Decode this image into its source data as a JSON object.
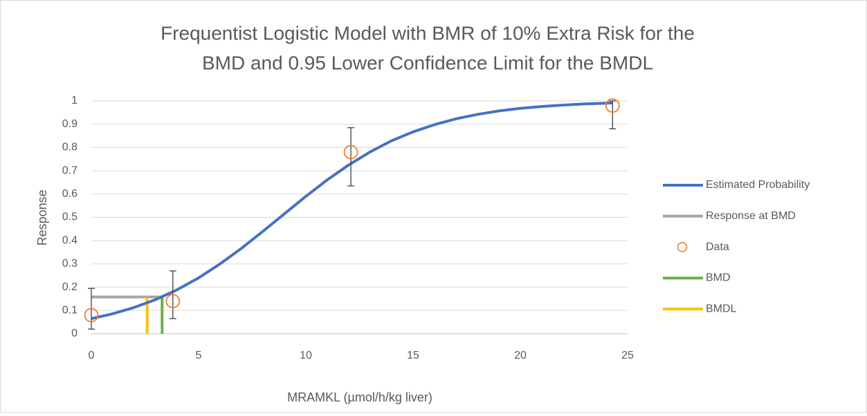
{
  "chart_data": {
    "type": "line",
    "title": [
      "Frequentist Logistic Model with BMR of 10% Extra Risk for the",
      "BMD and 0.95 Lower Confidence Limit for the BMDL"
    ],
    "x_label": "MRAMKL (µmol/h/kg liver)",
    "y_label": "Response",
    "xlim": [
      0,
      25
    ],
    "xticks": [
      0,
      5,
      10,
      15,
      20,
      25
    ],
    "ylim": [
      0,
      1
    ],
    "yticks": [
      0,
      0.1,
      0.2,
      0.3,
      0.4,
      0.5,
      0.6,
      0.7,
      0.8,
      0.9,
      1
    ],
    "grid": true,
    "legend": "right",
    "series": [
      {
        "name": "Estimated Probability",
        "color": "#4472c4",
        "style": "line",
        "x": [
          0,
          1,
          2,
          3,
          4,
          5,
          6,
          7,
          8,
          9,
          10,
          11,
          12,
          13,
          14,
          15,
          16,
          17,
          18,
          19,
          20,
          21,
          22,
          23,
          24,
          24.3
        ],
        "values": [
          0.065,
          0.086,
          0.113,
          0.147,
          0.189,
          0.24,
          0.3,
          0.367,
          0.44,
          0.515,
          0.59,
          0.661,
          0.725,
          0.781,
          0.829,
          0.867,
          0.898,
          0.923,
          0.942,
          0.957,
          0.968,
          0.976,
          0.982,
          0.987,
          0.99,
          0.991
        ]
      },
      {
        "name": "Response at BMD",
        "color": "#a5a5a5",
        "style": "line",
        "x": [
          0,
          3.3
        ],
        "values": [
          0.158,
          0.158
        ]
      },
      {
        "name": "Data",
        "color": "#ed7d31",
        "style": "marker",
        "x": [
          0,
          3.8,
          12.1,
          24.3
        ],
        "values": [
          0.08,
          0.14,
          0.78,
          0.98
        ],
        "error_minus": [
          0.06,
          0.075,
          0.145,
          0.1
        ],
        "error_plus": [
          0.115,
          0.13,
          0.105,
          0.02
        ]
      },
      {
        "name": "BMD",
        "color": "#70ad47",
        "style": "line",
        "x": [
          3.3,
          3.3
        ],
        "values": [
          0,
          0.158
        ]
      },
      {
        "name": "BMDL",
        "color": "#ffc000",
        "style": "line",
        "x": [
          2.6,
          2.6
        ],
        "values": [
          0,
          0.158
        ]
      }
    ]
  }
}
